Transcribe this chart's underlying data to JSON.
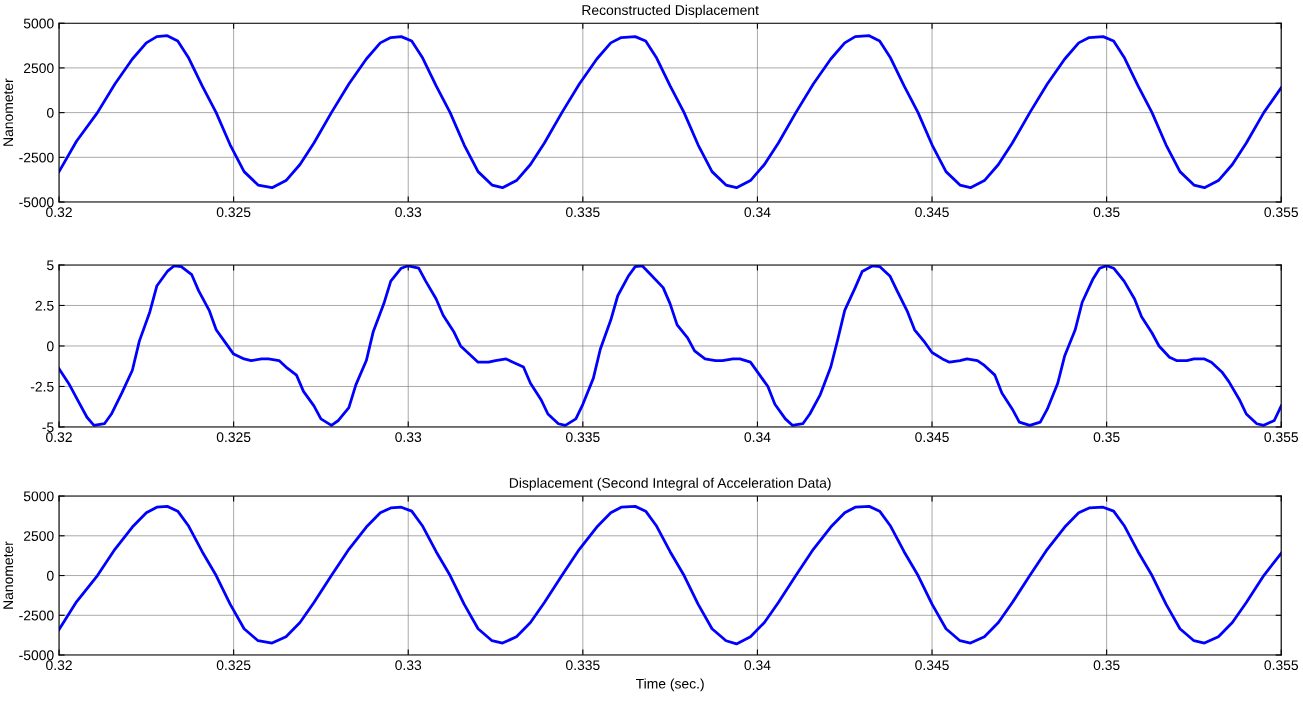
{
  "chart_data": [
    {
      "type": "line",
      "title": "Reconstructed Displacement",
      "ylabel": "Nanometer",
      "xlim": [
        0.32,
        0.355
      ],
      "xticks": [
        0.32,
        0.325,
        0.33,
        0.335,
        0.34,
        0.345,
        0.35,
        0.355
      ],
      "ylim": [
        -5000,
        5000
      ],
      "yticks": [
        -5000,
        -2500,
        0,
        2500,
        5000
      ],
      "grid": true,
      "x": [
        0.32,
        0.3205,
        0.3211,
        0.3216,
        0.3221,
        0.3225,
        0.3228,
        0.3231,
        0.3234,
        0.3237,
        0.3241,
        0.3245,
        0.3249,
        0.3253,
        0.3257,
        0.3261,
        0.3265,
        0.3269,
        0.3273,
        0.3278,
        0.3283,
        0.3288,
        0.3292,
        0.3295,
        0.3298,
        0.3301,
        0.3304,
        0.3308,
        0.3312,
        0.3316,
        0.332,
        0.3324,
        0.3327,
        0.3331,
        0.3335,
        0.3339,
        0.3344,
        0.3349,
        0.3354,
        0.3358,
        0.3361,
        0.3365,
        0.3368,
        0.3371,
        0.3375,
        0.3379,
        0.3383,
        0.3387,
        0.3391,
        0.3394,
        0.3398,
        0.3402,
        0.3406,
        0.3411,
        0.3416,
        0.3421,
        0.3425,
        0.3428,
        0.3432,
        0.3435,
        0.3438,
        0.3442,
        0.3446,
        0.345,
        0.3454,
        0.3458,
        0.3461,
        0.3465,
        0.3469,
        0.3473,
        0.3478,
        0.3483,
        0.3488,
        0.3492,
        0.3495,
        0.3499,
        0.3502,
        0.3505,
        0.3509,
        0.3513,
        0.3517,
        0.3521,
        0.3525,
        0.3528,
        0.3532,
        0.3536,
        0.354,
        0.3545,
        0.355
      ],
      "series": [
        {
          "color": "#0000ff",
          "values": [
            -3300,
            -1600,
            0,
            1600,
            3000,
            3900,
            4250,
            4300,
            4000,
            3100,
            1500,
            0,
            -1800,
            -3300,
            -4050,
            -4200,
            -3800,
            -2900,
            -1700,
            0,
            1600,
            3000,
            3900,
            4200,
            4250,
            4000,
            3100,
            1500,
            0,
            -1800,
            -3300,
            -4050,
            -4200,
            -3800,
            -2900,
            -1700,
            0,
            1600,
            3000,
            3900,
            4200,
            4250,
            4000,
            3100,
            1500,
            0,
            -1800,
            -3300,
            -4050,
            -4200,
            -3800,
            -2900,
            -1700,
            0,
            1600,
            3000,
            3900,
            4250,
            4300,
            4000,
            3100,
            1500,
            0,
            -1800,
            -3300,
            -4050,
            -4200,
            -3800,
            -2900,
            -1700,
            0,
            1600,
            3000,
            3900,
            4200,
            4250,
            4000,
            3100,
            1500,
            0,
            -1800,
            -3300,
            -4050,
            -4200,
            -3800,
            -2900,
            -1700,
            0,
            1400
          ]
        }
      ]
    },
    {
      "type": "line",
      "xlim": [
        0.32,
        0.355
      ],
      "xticks": [
        0.32,
        0.325,
        0.33,
        0.335,
        0.34,
        0.345,
        0.35,
        0.355
      ],
      "ylim": [
        -5,
        5
      ],
      "yticks": [
        -5,
        -2.5,
        0,
        2.5,
        5
      ],
      "grid": true,
      "x": [
        0.32,
        0.3203,
        0.3206,
        0.3208,
        0.321,
        0.3213,
        0.3215,
        0.3218,
        0.3221,
        0.3223,
        0.3226,
        0.3228,
        0.3231,
        0.3233,
        0.3235,
        0.3238,
        0.324,
        0.3243,
        0.3245,
        0.3248,
        0.325,
        0.3253,
        0.3255,
        0.3258,
        0.326,
        0.3263,
        0.3265,
        0.3268,
        0.327,
        0.3273,
        0.3275,
        0.3278,
        0.328,
        0.3283,
        0.3285,
        0.3288,
        0.329,
        0.3293,
        0.3295,
        0.3298,
        0.33,
        0.3303,
        0.3305,
        0.3308,
        0.331,
        0.3313,
        0.3315,
        0.3318,
        0.332,
        0.3323,
        0.3325,
        0.3328,
        0.333,
        0.3333,
        0.3335,
        0.3338,
        0.334,
        0.3343,
        0.3345,
        0.3348,
        0.335,
        0.3353,
        0.3355,
        0.3358,
        0.336,
        0.3363,
        0.3365,
        0.3367,
        0.3369,
        0.3373,
        0.3375,
        0.3377,
        0.338,
        0.3382,
        0.3385,
        0.3388,
        0.339,
        0.3393,
        0.3395,
        0.3398,
        0.34,
        0.3403,
        0.3405,
        0.3408,
        0.341,
        0.3413,
        0.3415,
        0.3418,
        0.3421,
        0.3423,
        0.3425,
        0.3428,
        0.343,
        0.3433,
        0.3435,
        0.3438,
        0.344,
        0.3443,
        0.3445,
        0.3448,
        0.345,
        0.3453,
        0.3455,
        0.3458,
        0.346,
        0.3463,
        0.3465,
        0.3468,
        0.347,
        0.3473,
        0.3475,
        0.3478,
        0.3481,
        0.3483,
        0.3486,
        0.3488,
        0.3491,
        0.3493,
        0.3496,
        0.3498,
        0.35,
        0.3502,
        0.3505,
        0.3508,
        0.351,
        0.3513,
        0.3515,
        0.3518,
        0.352,
        0.3523,
        0.3525,
        0.3528,
        0.353,
        0.3533,
        0.3535,
        0.3538,
        0.354,
        0.3543,
        0.3545,
        0.3548,
        0.355
      ],
      "series": [
        {
          "color": "#0000ff",
          "values": [
            -1.4,
            -2.4,
            -3.6,
            -4.4,
            -4.9,
            -4.8,
            -4.2,
            -2.9,
            -1.5,
            0.3,
            2.1,
            3.7,
            4.6,
            4.95,
            4.9,
            4.4,
            3.4,
            2.2,
            1.0,
            0.1,
            -0.5,
            -0.8,
            -0.9,
            -0.8,
            -0.8,
            -0.9,
            -1.3,
            -1.8,
            -2.8,
            -3.7,
            -4.5,
            -4.9,
            -4.6,
            -3.8,
            -2.4,
            -0.9,
            0.9,
            2.6,
            4.0,
            4.8,
            4.95,
            4.8,
            4.0,
            2.9,
            1.9,
            0.9,
            0.0,
            -0.6,
            -1.0,
            -1.0,
            -0.9,
            -0.8,
            -1.0,
            -1.3,
            -2.3,
            -3.3,
            -4.2,
            -4.8,
            -4.9,
            -4.5,
            -3.6,
            -2.0,
            -0.2,
            1.6,
            3.1,
            4.3,
            4.9,
            4.95,
            4.5,
            3.6,
            2.6,
            1.3,
            0.5,
            -0.3,
            -0.8,
            -0.9,
            -0.9,
            -0.8,
            -0.8,
            -1.0,
            -1.6,
            -2.5,
            -3.6,
            -4.5,
            -4.9,
            -4.8,
            -4.2,
            -3.0,
            -1.3,
            0.4,
            2.2,
            3.6,
            4.6,
            4.95,
            4.9,
            4.3,
            3.4,
            2.1,
            1.0,
            0.2,
            -0.4,
            -0.8,
            -1.0,
            -0.9,
            -0.8,
            -0.9,
            -1.2,
            -1.8,
            -2.9,
            -3.9,
            -4.7,
            -4.9,
            -4.7,
            -3.9,
            -2.3,
            -0.6,
            1.0,
            2.7,
            4.1,
            4.8,
            4.95,
            4.8,
            4.0,
            2.9,
            1.8,
            0.8,
            0.0,
            -0.7,
            -0.9,
            -0.9,
            -0.8,
            -0.8,
            -1.0,
            -1.6,
            -2.2,
            -3.3,
            -4.2,
            -4.8,
            -4.9,
            -4.6,
            -3.7
          ]
        }
      ]
    },
    {
      "type": "line",
      "title": "Displacement (Second Integral of Acceleration Data)",
      "xlabel": "Time (sec.)",
      "ylabel": "Nanometer",
      "xlim": [
        0.32,
        0.355
      ],
      "xticks": [
        0.32,
        0.325,
        0.33,
        0.335,
        0.34,
        0.345,
        0.35,
        0.355
      ],
      "ylim": [
        -5000,
        5000
      ],
      "yticks": [
        -5000,
        -2500,
        0,
        2500,
        5000
      ],
      "grid": true,
      "x": [
        0.32,
        0.3205,
        0.3211,
        0.3216,
        0.3221,
        0.3225,
        0.3228,
        0.3231,
        0.3234,
        0.3237,
        0.3241,
        0.3245,
        0.3249,
        0.3253,
        0.3257,
        0.3261,
        0.3265,
        0.3269,
        0.3273,
        0.3278,
        0.3283,
        0.3288,
        0.3292,
        0.3295,
        0.3298,
        0.3301,
        0.3304,
        0.3308,
        0.3312,
        0.3316,
        0.332,
        0.3324,
        0.3327,
        0.3331,
        0.3335,
        0.3339,
        0.3344,
        0.3349,
        0.3354,
        0.3358,
        0.3361,
        0.3365,
        0.3368,
        0.3371,
        0.3375,
        0.3379,
        0.3383,
        0.3387,
        0.3391,
        0.3394,
        0.3398,
        0.3402,
        0.3406,
        0.3411,
        0.3416,
        0.3421,
        0.3425,
        0.3428,
        0.3432,
        0.3435,
        0.3438,
        0.3442,
        0.3446,
        0.345,
        0.3454,
        0.3458,
        0.3461,
        0.3465,
        0.3469,
        0.3473,
        0.3478,
        0.3483,
        0.3488,
        0.3492,
        0.3495,
        0.3499,
        0.3502,
        0.3505,
        0.3509,
        0.3513,
        0.3517,
        0.3521,
        0.3525,
        0.3528,
        0.3532,
        0.3536,
        0.354,
        0.3545,
        0.355
      ],
      "series": [
        {
          "color": "#0000ff",
          "values": [
            -3400,
            -1650,
            0,
            1650,
            3050,
            3950,
            4300,
            4350,
            4050,
            3150,
            1500,
            0,
            -1800,
            -3350,
            -4100,
            -4250,
            -3850,
            -2950,
            -1700,
            0,
            1650,
            3050,
            3950,
            4250,
            4300,
            4050,
            3150,
            1500,
            0,
            -1800,
            -3350,
            -4100,
            -4250,
            -3850,
            -2950,
            -1700,
            0,
            1650,
            3050,
            3950,
            4300,
            4350,
            4050,
            3150,
            1500,
            0,
            -1800,
            -3350,
            -4100,
            -4300,
            -3850,
            -2950,
            -1700,
            0,
            1650,
            3050,
            3950,
            4300,
            4350,
            4050,
            3150,
            1500,
            0,
            -1800,
            -3350,
            -4100,
            -4250,
            -3850,
            -2950,
            -1700,
            0,
            1650,
            3050,
            3950,
            4250,
            4300,
            4050,
            3150,
            1500,
            0,
            -1800,
            -3350,
            -4100,
            -4250,
            -3850,
            -2950,
            -1700,
            0,
            1400
          ]
        }
      ]
    }
  ]
}
